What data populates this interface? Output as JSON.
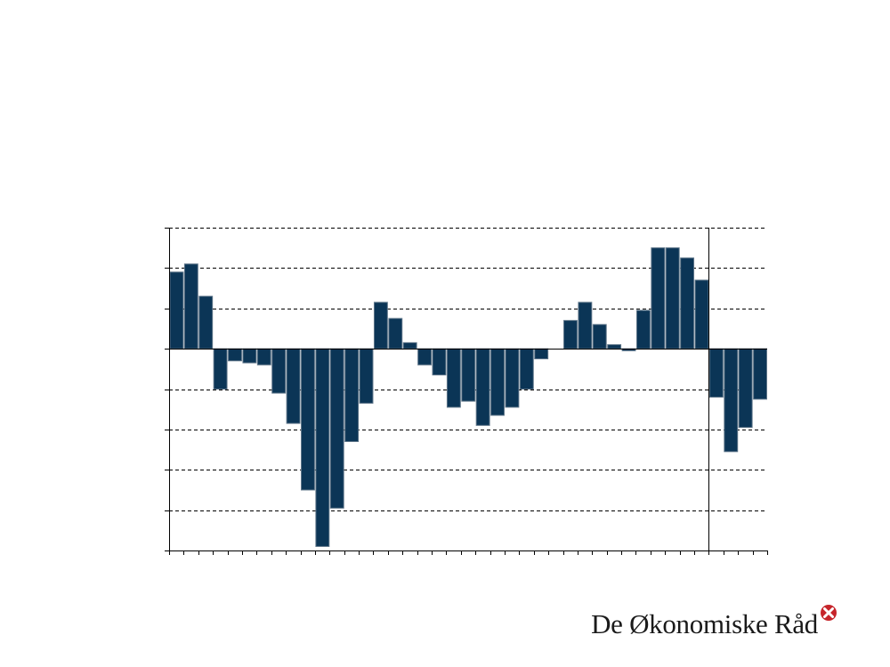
{
  "chart_data": {
    "type": "bar",
    "title": "",
    "xlabel": "",
    "ylabel": "",
    "ylim": [
      -5,
      3
    ],
    "grid": true,
    "series": [
      {
        "values": [
          1.9,
          2.1,
          1.3,
          -1.0,
          -0.3,
          -0.35,
          -0.4,
          -1.1,
          -1.85,
          -3.5,
          -4.9,
          -3.95,
          -2.3,
          -1.35,
          1.15,
          0.75,
          0.15,
          -0.4,
          -0.65,
          -1.45,
          -1.3,
          -1.9,
          -1.65,
          -1.45,
          -1.0,
          -0.25,
          0.0,
          0.7,
          1.15,
          0.6,
          0.1,
          -0.05,
          0.95,
          2.5,
          2.5,
          2.25,
          1.7,
          -1.2,
          -2.55,
          -1.95,
          -1.25
        ]
      }
    ],
    "forecast_divider_after_index": 36
  },
  "colors": {
    "bar": "#0b3556",
    "bar_edge": "#5d7488",
    "logo_red": "#c6252b"
  },
  "logo": {
    "text": "De Økonomiske Råd",
    "mark": "cross-circle-icon"
  }
}
